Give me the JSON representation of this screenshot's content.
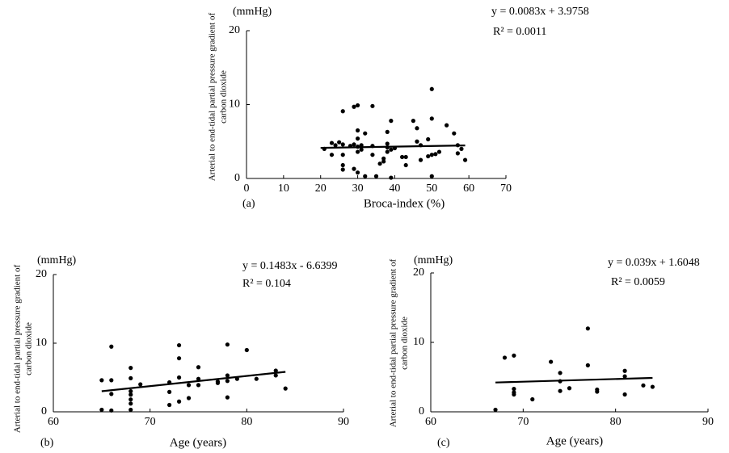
{
  "chart_data": [
    {
      "type": "scatter",
      "panel": "(a)",
      "unit": "(mmHg)",
      "equation": "y = 0.0083x + 3.9758",
      "r2": "R² = 0.0011",
      "ylabel": [
        "Arterial to end-tidal partial pressure gradient of",
        "carbon dioxide"
      ],
      "xlabel": "Broca-index (%)",
      "color": "#000000",
      "x": [
        21,
        23,
        23,
        24,
        25,
        26,
        26,
        26,
        26,
        26,
        28,
        29,
        29,
        29,
        30,
        30,
        30,
        30,
        30,
        30,
        31,
        31,
        32,
        32,
        34,
        34,
        34,
        35,
        36,
        37,
        37,
        38,
        38,
        38,
        38,
        39,
        39,
        39,
        40,
        42,
        43,
        43,
        45,
        46,
        46,
        47,
        47,
        49,
        49,
        50,
        50,
        50,
        50,
        51,
        52,
        54,
        56,
        57,
        57,
        58,
        59
      ],
      "y": [
        4,
        3.2,
        4.8,
        4.5,
        4.9,
        9.1,
        4.6,
        3.2,
        1.8,
        1.2,
        4.4,
        9.7,
        4.6,
        1.3,
        9.9,
        6.5,
        5.4,
        4.3,
        3.6,
        0.8,
        4.5,
        3.9,
        6.1,
        0.3,
        9.8,
        3.2,
        4.4,
        0.3,
        2,
        2.3,
        2.7,
        6.3,
        4.7,
        4.2,
        3.6,
        0.1,
        3.9,
        7.8,
        4.1,
        2.9,
        2.9,
        1.8,
        7.8,
        6.8,
        5,
        4.5,
        2.5,
        5.3,
        3,
        12.1,
        8.1,
        3.2,
        0.3,
        3.3,
        3.6,
        7.2,
        6.1,
        4.5,
        3.4,
        4,
        2.5
      ],
      "trend": {
        "x": [
          20,
          59
        ],
        "y": [
          4.14,
          4.47
        ]
      },
      "xlim": [
        0,
        70
      ],
      "xticks": [
        0,
        10,
        20,
        30,
        40,
        50,
        60,
        70
      ],
      "ylim": [
        0,
        20
      ],
      "yticks": [
        0,
        10,
        20
      ]
    },
    {
      "type": "scatter",
      "panel": "(b)",
      "unit": "(mmHg)",
      "equation": "y = 0.1483x - 6.6399",
      "r2": "R² = 0.104",
      "ylabel": [
        "Arterial to end-tidal partial pressure gradient of",
        "carbon dioxide"
      ],
      "xlabel": "Age  (years)",
      "color": "#000000",
      "x": [
        65,
        65,
        66,
        66,
        66,
        66,
        68,
        68,
        68,
        68,
        68,
        68,
        68,
        69,
        72,
        72,
        72,
        73,
        73,
        73,
        73,
        74,
        74,
        75,
        75,
        75,
        77,
        77,
        78,
        78,
        78,
        78,
        79,
        80,
        81,
        83,
        83,
        84
      ],
      "y": [
        4.6,
        0.3,
        9.5,
        4.6,
        2.6,
        0.2,
        6.4,
        4.9,
        3,
        2.5,
        1.8,
        1.2,
        0.3,
        4,
        4.3,
        2.9,
        1,
        9.7,
        7.8,
        5,
        1.5,
        2,
        3.9,
        6.5,
        4.8,
        3.9,
        4.4,
        4.2,
        9.8,
        5.3,
        4.5,
        2.1,
        4.8,
        9,
        4.8,
        6,
        5.3,
        3.4
      ],
      "trend": {
        "x": [
          65,
          84
        ],
        "y": [
          3,
          5.82
        ]
      },
      "xlim": [
        60,
        90
      ],
      "xticks": [
        60,
        70,
        80,
        90
      ],
      "ylim": [
        0,
        20
      ],
      "yticks": [
        0,
        10,
        20
      ]
    },
    {
      "type": "scatter",
      "panel": "(c)",
      "unit": "(mmHg)",
      "equation": "y = 0.039x + 1.6048",
      "r2": "R² = 0.0059",
      "ylabel": [
        "Arterial to end-tidal partial pressure gradient of",
        "carbon dioxide"
      ],
      "xlabel": "Age  (years)",
      "color": "#000000",
      "x": [
        67,
        68,
        69,
        69,
        69,
        69,
        71,
        73,
        74,
        74,
        74,
        75,
        77,
        77,
        78,
        78,
        81,
        81,
        81,
        83,
        84
      ],
      "y": [
        0.3,
        7.8,
        8.1,
        3.3,
        2.8,
        2.5,
        1.8,
        7.2,
        5.6,
        4.4,
        3,
        3.4,
        12,
        6.7,
        3.2,
        2.9,
        5.9,
        5.1,
        2.5,
        3.8,
        3.6
      ],
      "trend": {
        "x": [
          67,
          84
        ],
        "y": [
          4.22,
          4.88
        ]
      },
      "xlim": [
        60,
        90
      ],
      "xticks": [
        60,
        70,
        80,
        90
      ],
      "ylim": [
        0,
        20
      ],
      "yticks": [
        0,
        10,
        20
      ]
    }
  ]
}
